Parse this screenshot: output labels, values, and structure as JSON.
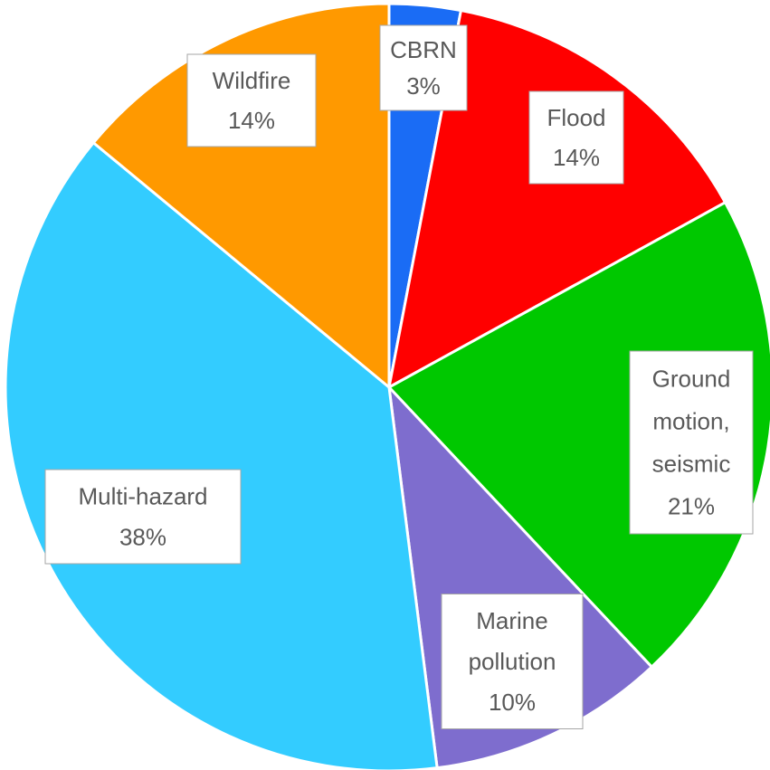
{
  "chart_data": {
    "type": "pie",
    "title": "",
    "legend": "none",
    "data_labels": "callouts with category name and percentage",
    "slices": [
      {
        "label": "CBRN",
        "value": 3,
        "value_label": "3%",
        "color": "#1a6cf5"
      },
      {
        "label": "Flood",
        "value": 14,
        "value_label": "14%",
        "color": "#ff0000"
      },
      {
        "label": "Ground motion, seismic",
        "label_lines": [
          "Ground",
          "motion,",
          "seismic"
        ],
        "value": 21,
        "value_label": "21%",
        "color": "#00c800"
      },
      {
        "label": "Marine pollution",
        "label_lines": [
          "Marine",
          "pollution"
        ],
        "value": 10,
        "value_label": "10%",
        "color": "#7e6dce"
      },
      {
        "label": "Multi-hazard",
        "value": 38,
        "value_label": "38%",
        "color": "#33ccff"
      },
      {
        "label": "Wildfire",
        "value": 14,
        "value_label": "14%",
        "color": "#ff9900"
      }
    ]
  }
}
